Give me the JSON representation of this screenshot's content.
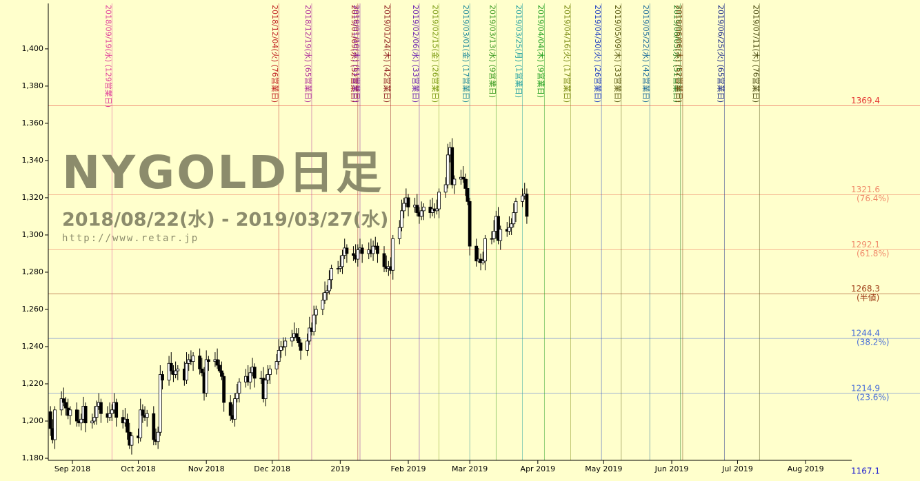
{
  "chart_data": {
    "type": "candlestick",
    "title": "NYGOLD日足",
    "subtitle": "2018/08/22(水) - 2019/03/27(水)",
    "url": "http://www.retar.jp",
    "up_color": "#ffffff",
    "down_color": "#000000",
    "xlim": [
      -1,
      365
    ],
    "ylim": [
      1178.9,
      1424.4
    ],
    "xticks": [
      {
        "value": 10,
        "label": "Sep 2018"
      },
      {
        "value": 40,
        "label": "Oct 2018"
      },
      {
        "value": 71,
        "label": "Nov 2018"
      },
      {
        "value": 101,
        "label": "Dec 2018"
      },
      {
        "value": 132,
        "label": "2019"
      },
      {
        "value": 163,
        "label": "Feb 2019"
      },
      {
        "value": 191,
        "label": "Mar 2019"
      },
      {
        "value": 222,
        "label": "Apr 2019"
      },
      {
        "value": 252,
        "label": "May 2019"
      },
      {
        "value": 283,
        "label": "Jun 2019"
      },
      {
        "value": 313,
        "label": "Jul 2019"
      },
      {
        "value": 344,
        "label": "Aug 2019"
      }
    ],
    "yticks": [
      {
        "value": 1180,
        "label": "1,180"
      },
      {
        "value": 1200,
        "label": "1,200"
      },
      {
        "value": 1220,
        "label": "1,220"
      },
      {
        "value": 1240,
        "label": "1,240"
      },
      {
        "value": 1260,
        "label": "1,260"
      },
      {
        "value": 1280,
        "label": "1,280"
      },
      {
        "value": 1300,
        "label": "1,300"
      },
      {
        "value": 1320,
        "label": "1,320"
      },
      {
        "value": 1340,
        "label": "1,340"
      },
      {
        "value": 1360,
        "label": "1,360"
      },
      {
        "value": 1380,
        "label": "1,380"
      },
      {
        "value": 1400,
        "label": "1,400"
      }
    ],
    "levels": [
      {
        "value": 1369.4,
        "color": "#e53935"
      },
      {
        "value": 1321.6,
        "label": "(76.4%)",
        "color": "#f08a6a"
      },
      {
        "value": 1292.1,
        "label": "(61.8%)",
        "color": "#f08a6a"
      },
      {
        "value": 1268.3,
        "label": "(半値)",
        "color": "#a0401a"
      },
      {
        "value": 1244.4,
        "label": "(38.2%)",
        "color": "#4a6fd8"
      },
      {
        "value": 1214.9,
        "label": "(23.6%)",
        "color": "#4a6fd8"
      },
      {
        "value": 1167.1,
        "color": "#1a1ad0"
      }
    ],
    "markers": [
      {
        "x": 28,
        "label": "2018/09/19(水) (129営業日)",
        "color": "#e0409a"
      },
      {
        "x": 104,
        "label": "2018/12/04(火) (76営業日)",
        "color": "#c02020"
      },
      {
        "x": 119,
        "label": "2018/12/19(水) (65営業日)",
        "color": "#b0309a"
      },
      {
        "x": 140,
        "label": "2019/01/09(水) (52営業日)",
        "color": "#a01830"
      },
      {
        "x": 141,
        "label": "2019/01/10(木) (51営業日)",
        "color": "#8a20a0"
      },
      {
        "x": 155,
        "label": "2019/01/24(木) (42営業日)",
        "color": "#902020"
      },
      {
        "x": 168,
        "label": "2019/02/06(水) (33営業日)",
        "color": "#6a20b0"
      },
      {
        "x": 177,
        "label": "2019/02/15(金) (26営業日)",
        "color": "#7a9a10"
      },
      {
        "x": 191,
        "label": "2019/03/01(金) (17営業日)",
        "color": "#208a9a"
      },
      {
        "x": 203,
        "label": "2019/03/13(水) (9営業日)",
        "color": "#3a9a20"
      },
      {
        "x": 215,
        "label": "2019/03/25(月) (1営業日)",
        "color": "#20a0a0"
      },
      {
        "x": 225,
        "label": "2019/04/04(木) (9営業日)",
        "color": "#20a020"
      },
      {
        "x": 237,
        "label": "2019/04/16(火) (17営業日)",
        "color": "#7a8a10"
      },
      {
        "x": 251,
        "label": "2019/04/30(火) (26営業日)",
        "color": "#2040c0"
      },
      {
        "x": 260,
        "label": "2019/05/09(木) (33営業日)",
        "color": "#5a5a10"
      },
      {
        "x": 273,
        "label": "2019/05/22(水) (42営業日)",
        "color": "#1a6a9a"
      },
      {
        "x": 287,
        "label": "2019/06/05(水) (51営業日)",
        "color": "#1a7a1a"
      },
      {
        "x": 288,
        "label": "2019/06/06(木) (52営業日)",
        "color": "#7a4a10"
      },
      {
        "x": 307,
        "label": "2019/06/25(火) (65営業日)",
        "color": "#1a2a8a"
      },
      {
        "x": 323,
        "label": "2019/07/11(木) (76営業日)",
        "color": "#4a4a10"
      }
    ],
    "x": [
      0,
      1,
      2,
      5,
      6,
      7,
      8,
      9,
      12,
      13,
      14,
      15,
      16,
      19,
      20,
      21,
      22,
      23,
      26,
      27,
      28,
      29,
      30,
      33,
      34,
      35,
      36,
      37,
      40,
      41,
      42,
      43,
      44,
      47,
      48,
      49,
      50,
      51,
      54,
      55,
      56,
      57,
      58,
      61,
      62,
      63,
      64,
      65,
      68,
      69,
      70,
      71,
      72,
      75,
      76,
      77,
      78,
      79,
      82,
      83,
      84,
      85,
      86,
      89,
      90,
      91,
      92,
      93,
      96,
      97,
      98,
      99,
      100,
      103,
      104,
      105,
      106,
      107,
      110,
      111,
      112,
      113,
      114,
      117,
      118,
      119,
      120,
      121,
      124,
      125,
      126,
      127,
      128,
      131,
      132,
      133,
      134,
      135,
      138,
      139,
      140,
      141,
      142,
      145,
      146,
      147,
      148,
      149,
      152,
      153,
      154,
      155,
      156,
      159,
      160,
      161,
      162,
      163,
      166,
      167,
      168,
      169,
      170,
      173,
      174,
      175,
      176,
      177,
      180,
      181,
      182,
      183,
      184,
      187,
      188,
      189,
      190,
      191,
      194,
      195,
      196,
      197,
      198,
      201,
      202,
      203,
      204,
      205,
      208,
      209,
      210,
      211,
      212,
      215,
      216,
      217
    ],
    "ohlc": [
      [
        1205,
        1208,
        1192,
        1196
      ],
      [
        1196,
        1201,
        1188,
        1190
      ],
      [
        1190,
        1208,
        1185,
        1206
      ],
      [
        1206,
        1216,
        1203,
        1212
      ],
      [
        1212,
        1218,
        1208,
        1210
      ],
      [
        1210,
        1213,
        1203,
        1207
      ],
      [
        1207,
        1212,
        1201,
        1203
      ],
      [
        1203,
        1208,
        1198,
        1206
      ],
      [
        1206,
        1210,
        1197,
        1200
      ],
      [
        1200,
        1206,
        1197,
        1199
      ],
      [
        1199,
        1204,
        1195,
        1201
      ],
      [
        1201,
        1213,
        1199,
        1208
      ],
      [
        1208,
        1210,
        1194,
        1199
      ],
      [
        1199,
        1204,
        1196,
        1200
      ],
      [
        1200,
        1208,
        1198,
        1202
      ],
      [
        1202,
        1211,
        1198,
        1208
      ],
      [
        1208,
        1215,
        1206,
        1210
      ],
      [
        1210,
        1212,
        1199,
        1204
      ],
      [
        1204,
        1208,
        1199,
        1202
      ],
      [
        1202,
        1210,
        1200,
        1204
      ],
      [
        1204,
        1209,
        1200,
        1206
      ],
      [
        1206,
        1215,
        1204,
        1210
      ],
      [
        1210,
        1212,
        1197,
        1202
      ],
      [
        1202,
        1206,
        1196,
        1199
      ],
      [
        1199,
        1207,
        1197,
        1201
      ],
      [
        1201,
        1204,
        1190,
        1194
      ],
      [
        1194,
        1199,
        1185,
        1187
      ],
      [
        1187,
        1194,
        1182,
        1192
      ],
      [
        1192,
        1196,
        1188,
        1191
      ],
      [
        1191,
        1212,
        1189,
        1206
      ],
      [
        1206,
        1209,
        1199,
        1203
      ],
      [
        1203,
        1208,
        1200,
        1202
      ],
      [
        1202,
        1206,
        1197,
        1204
      ],
      [
        1204,
        1208,
        1187,
        1190
      ],
      [
        1190,
        1196,
        1187,
        1189
      ],
      [
        1189,
        1197,
        1185,
        1194
      ],
      [
        1194,
        1230,
        1192,
        1225
      ],
      [
        1225,
        1227,
        1217,
        1222
      ],
      [
        1222,
        1235,
        1219,
        1231
      ],
      [
        1231,
        1237,
        1225,
        1227
      ],
      [
        1227,
        1230,
        1221,
        1225
      ],
      [
        1225,
        1232,
        1223,
        1227
      ],
      [
        1227,
        1230,
        1222,
        1228
      ],
      [
        1228,
        1232,
        1219,
        1222
      ],
      [
        1222,
        1237,
        1220,
        1231
      ],
      [
        1231,
        1236,
        1227,
        1233
      ],
      [
        1233,
        1238,
        1230,
        1232
      ],
      [
        1232,
        1237,
        1227,
        1235
      ],
      [
        1235,
        1239,
        1225,
        1228
      ],
      [
        1228,
        1234,
        1224,
        1226
      ],
      [
        1226,
        1229,
        1211,
        1215
      ],
      [
        1215,
        1238,
        1213,
        1233
      ],
      [
        1233,
        1235,
        1227,
        1232
      ],
      [
        1232,
        1237,
        1229,
        1233
      ],
      [
        1233,
        1239,
        1228,
        1230
      ],
      [
        1230,
        1233,
        1226,
        1227
      ],
      [
        1227,
        1232,
        1222,
        1224
      ],
      [
        1224,
        1226,
        1205,
        1210
      ],
      [
        1210,
        1214,
        1200,
        1203
      ],
      [
        1203,
        1209,
        1199,
        1201
      ],
      [
        1201,
        1215,
        1197,
        1212
      ],
      [
        1212,
        1220,
        1210,
        1215
      ],
      [
        1215,
        1223,
        1210,
        1221
      ],
      [
        1221,
        1228,
        1218,
        1224
      ],
      [
        1224,
        1230,
        1219,
        1221
      ],
      [
        1221,
        1229,
        1217,
        1226
      ],
      [
        1226,
        1234,
        1224,
        1229
      ],
      [
        1229,
        1231,
        1218,
        1223
      ],
      [
        1223,
        1227,
        1220,
        1223
      ],
      [
        1223,
        1229,
        1210,
        1212
      ],
      [
        1212,
        1225,
        1208,
        1222
      ],
      [
        1222,
        1230,
        1220,
        1225
      ],
      [
        1225,
        1230,
        1220,
        1228
      ],
      [
        1228,
        1236,
        1225,
        1232
      ],
      [
        1232,
        1244,
        1230,
        1238
      ],
      [
        1238,
        1243,
        1234,
        1240
      ],
      [
        1240,
        1245,
        1238,
        1240
      ],
      [
        1240,
        1245,
        1235,
        1243
      ],
      [
        1243,
        1249,
        1240,
        1245
      ],
      [
        1245,
        1253,
        1243,
        1247
      ],
      [
        1247,
        1250,
        1243,
        1245
      ],
      [
        1245,
        1250,
        1240,
        1242
      ],
      [
        1242,
        1244,
        1233,
        1238
      ],
      [
        1238,
        1247,
        1235,
        1243
      ],
      [
        1243,
        1256,
        1241,
        1250
      ],
      [
        1250,
        1253,
        1246,
        1248
      ],
      [
        1248,
        1262,
        1246,
        1257
      ],
      [
        1257,
        1262,
        1252,
        1260
      ],
      [
        1260,
        1269,
        1257,
        1265
      ],
      [
        1265,
        1275,
        1263,
        1269
      ],
      [
        1269,
        1273,
        1265,
        1270
      ],
      [
        1270,
        1281,
        1268,
        1276
      ],
      [
        1276,
        1284,
        1271,
        1282
      ],
      [
        1282,
        1286,
        1279,
        1282
      ],
      [
        1282,
        1289,
        1280,
        1283
      ],
      [
        1283,
        1292,
        1279,
        1289
      ],
      [
        1289,
        1298,
        1287,
        1293
      ],
      [
        1293,
        1295,
        1285,
        1290
      ],
      [
        1290,
        1294,
        1286,
        1289
      ],
      [
        1289,
        1295,
        1285,
        1287
      ],
      [
        1287,
        1295,
        1283,
        1292
      ],
      [
        1292,
        1298,
        1290,
        1293
      ],
      [
        1293,
        1295,
        1285,
        1290
      ],
      [
        1290,
        1296,
        1287,
        1292
      ],
      [
        1292,
        1298,
        1288,
        1290
      ],
      [
        1290,
        1297,
        1286,
        1294
      ],
      [
        1294,
        1299,
        1292,
        1294
      ],
      [
        1294,
        1296,
        1285,
        1290
      ],
      [
        1290,
        1294,
        1280,
        1283
      ],
      [
        1283,
        1289,
        1280,
        1282
      ],
      [
        1282,
        1286,
        1278,
        1283
      ],
      [
        1283,
        1288,
        1279,
        1281
      ],
      [
        1281,
        1300,
        1276,
        1298
      ],
      [
        1298,
        1308,
        1295,
        1304
      ],
      [
        1304,
        1319,
        1302,
        1313
      ],
      [
        1313,
        1320,
        1309,
        1317
      ],
      [
        1317,
        1325,
        1315,
        1320
      ],
      [
        1320,
        1322,
        1310,
        1315
      ],
      [
        1315,
        1320,
        1312,
        1316
      ],
      [
        1316,
        1322,
        1310,
        1312
      ],
      [
        1312,
        1315,
        1306,
        1310
      ],
      [
        1310,
        1318,
        1308,
        1313
      ],
      [
        1313,
        1317,
        1308,
        1315
      ],
      [
        1315,
        1319,
        1309,
        1312
      ],
      [
        1312,
        1320,
        1310,
        1314
      ],
      [
        1314,
        1317,
        1309,
        1313
      ],
      [
        1313,
        1319,
        1311,
        1314
      ],
      [
        1314,
        1325,
        1309,
        1323
      ],
      [
        1323,
        1331,
        1320,
        1327
      ],
      [
        1327,
        1349,
        1325,
        1343
      ],
      [
        1343,
        1350,
        1339,
        1347
      ],
      [
        1347,
        1352,
        1325,
        1327
      ],
      [
        1327,
        1332,
        1322,
        1330
      ],
      [
        1330,
        1335,
        1327,
        1331
      ],
      [
        1331,
        1337,
        1328,
        1330
      ],
      [
        1330,
        1333,
        1321,
        1325
      ],
      [
        1325,
        1330,
        1316,
        1318
      ],
      [
        1318,
        1320,
        1289,
        1294
      ],
      [
        1294,
        1298,
        1283,
        1286
      ],
      [
        1286,
        1293,
        1285,
        1287
      ],
      [
        1287,
        1290,
        1281,
        1285
      ],
      [
        1285,
        1291,
        1284,
        1286
      ],
      [
        1286,
        1300,
        1281,
        1298
      ],
      [
        1298,
        1302,
        1295,
        1298
      ],
      [
        1298,
        1308,
        1296,
        1302
      ],
      [
        1302,
        1313,
        1298,
        1310
      ],
      [
        1310,
        1315,
        1295,
        1297
      ],
      [
        1297,
        1305,
        1292,
        1303
      ],
      [
        1303,
        1307,
        1299,
        1302
      ],
      [
        1302,
        1310,
        1300,
        1304
      ],
      [
        1304,
        1309,
        1300,
        1306
      ],
      [
        1306,
        1317,
        1304,
        1312
      ],
      [
        1312,
        1320,
        1307,
        1318
      ],
      [
        1318,
        1325,
        1315,
        1321
      ],
      [
        1321,
        1328,
        1319,
        1322
      ],
      [
        1322,
        1325,
        1306,
        1310
      ]
    ]
  }
}
